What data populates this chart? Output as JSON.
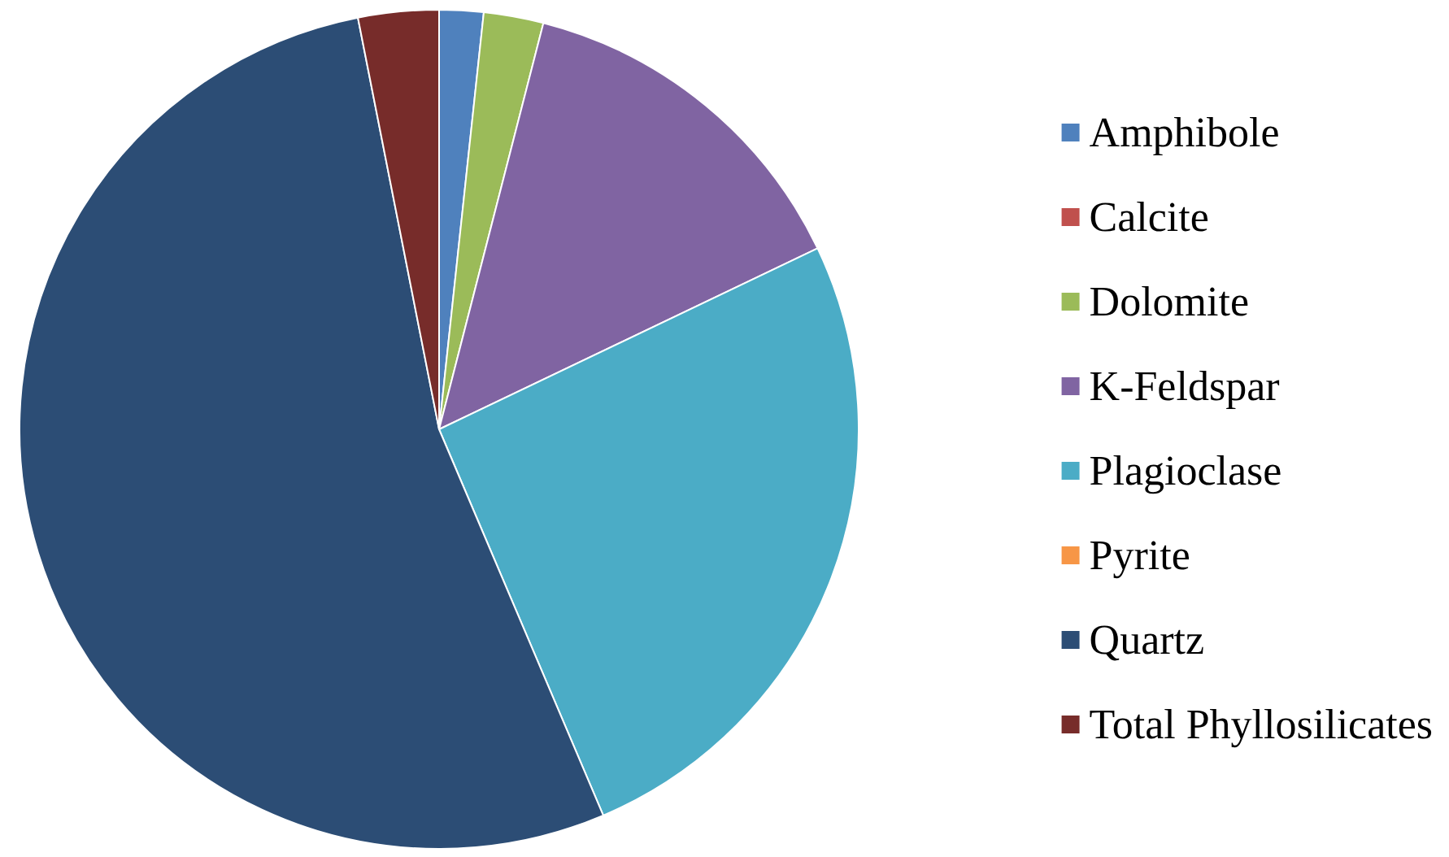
{
  "chart_data": {
    "type": "pie",
    "categories": [
      "Amphibole",
      "Calcite",
      "Dolomite",
      "K-Feldspar",
      "Plagioclase",
      "Pyrite",
      "Quartz",
      "Total Phyllosilicates"
    ],
    "values": [
      1.7,
      0,
      2.3,
      13.9,
      25.7,
      0,
      53.3,
      3.1
    ],
    "colors": [
      "#4f81bd",
      "#c0504d",
      "#9bbb59",
      "#8064a2",
      "#4bacc6",
      "#f79646",
      "#2c4d75",
      "#772c2a"
    ],
    "legend": "right"
  }
}
